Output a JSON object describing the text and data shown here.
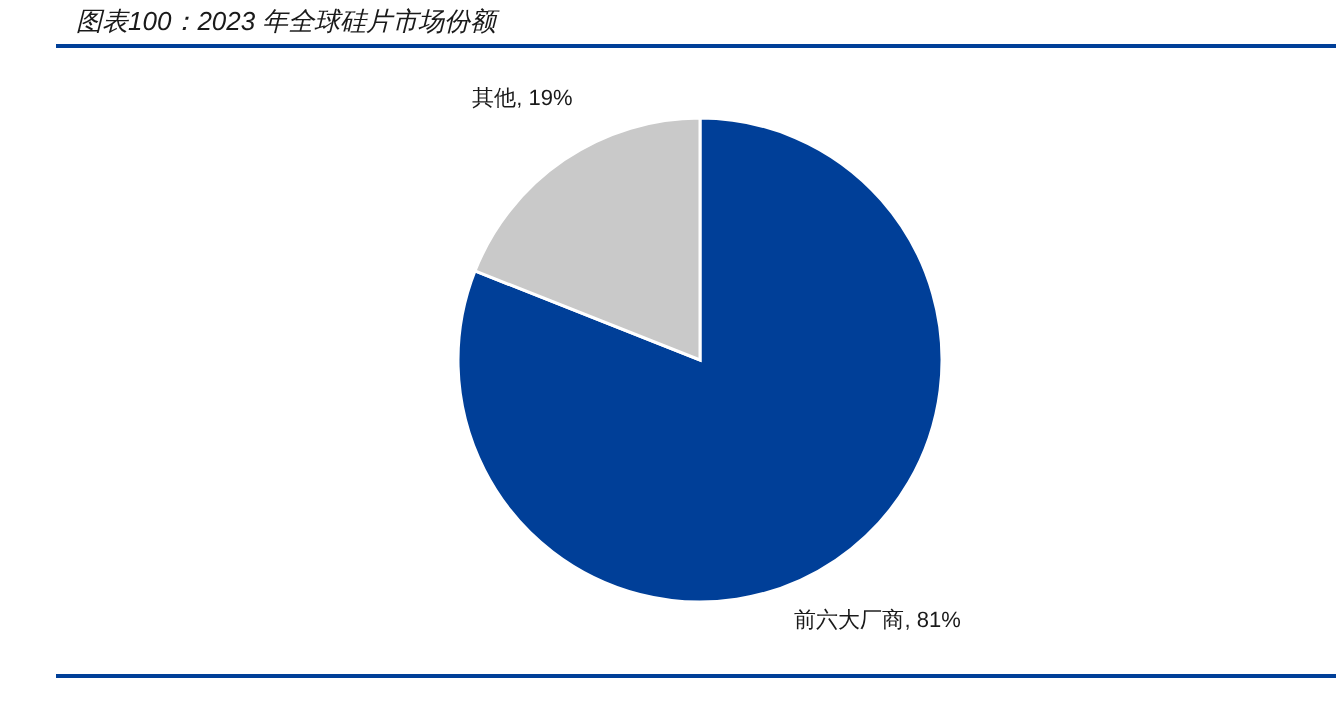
{
  "chart_data": {
    "type": "pie",
    "title": "图表100：2023 年全球硅片市场份额",
    "categories": [
      "前六大厂商",
      "其他"
    ],
    "values": [
      81,
      19
    ],
    "colors": [
      "#003f98",
      "#c9c9c9"
    ],
    "value_labels": [
      "81%",
      "19%"
    ]
  }
}
